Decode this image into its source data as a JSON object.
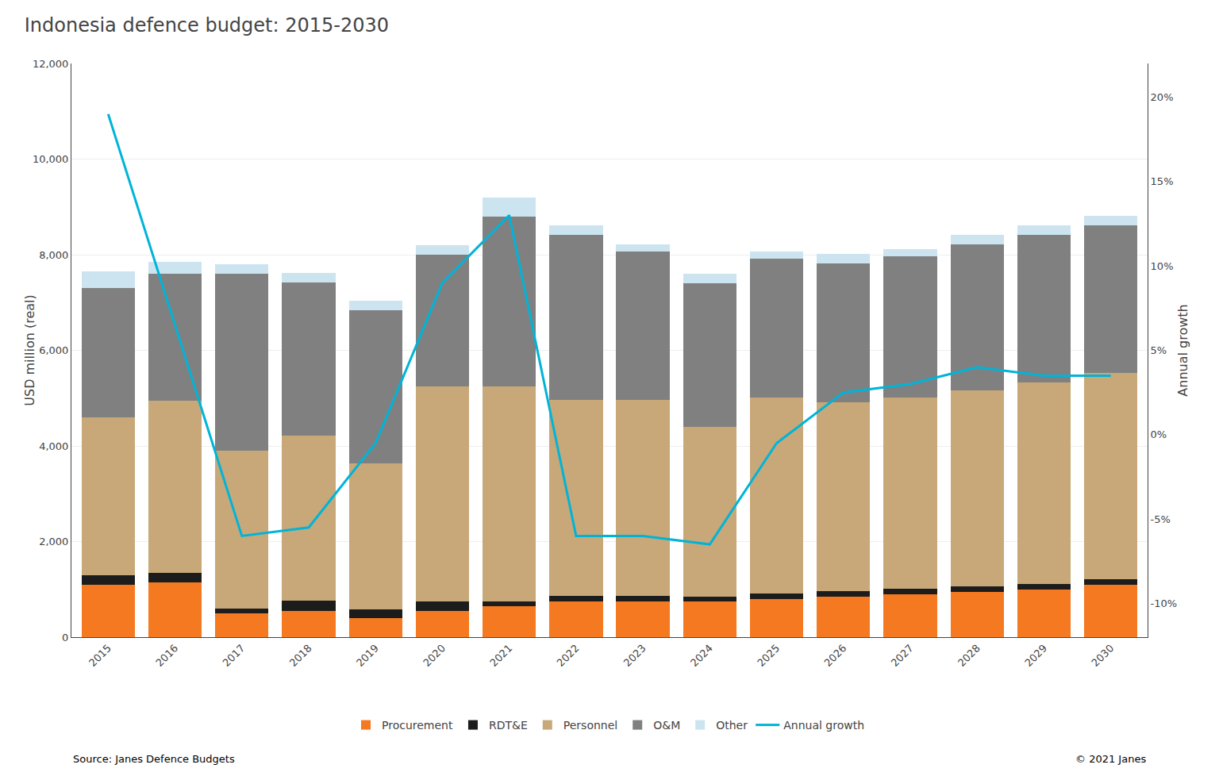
{
  "chart_data": {
    "type": "bar",
    "stacked": true,
    "title": "Indonesia defence budget: 2015-2030",
    "categories": [
      "2015",
      "2016",
      "2017",
      "2018",
      "2019",
      "2020",
      "2021",
      "2022",
      "2023",
      "2024",
      "2025",
      "2026",
      "2027",
      "2028",
      "2029",
      "2030"
    ],
    "series": [
      {
        "name": "Procurement",
        "color": "#f47920",
        "values": [
          1100,
          1150,
          500,
          550,
          400,
          550,
          650,
          750,
          750,
          750,
          800,
          850,
          900,
          950,
          1000,
          1100
        ]
      },
      {
        "name": "RDT&E",
        "color": "#1c1c1c",
        "values": [
          200,
          200,
          100,
          220,
          180,
          200,
          100,
          120,
          120,
          100,
          120,
          120,
          120,
          120,
          120,
          120
        ]
      },
      {
        "name": "Personnel",
        "color": "#c8a878",
        "values": [
          3300,
          3600,
          3300,
          3450,
          3050,
          4500,
          4500,
          4100,
          4100,
          3550,
          4100,
          3950,
          4000,
          4100,
          4200,
          4300
        ]
      },
      {
        "name": "O&M",
        "color": "#808080",
        "values": [
          2700,
          2650,
          3700,
          3200,
          3200,
          2750,
          3550,
          3450,
          3100,
          3000,
          2900,
          2900,
          2950,
          3050,
          3100,
          3100
        ]
      },
      {
        "name": "Other",
        "color": "#cce4f0",
        "values": [
          350,
          250,
          200,
          200,
          200,
          200,
          400,
          200,
          150,
          200,
          150,
          200,
          150,
          200,
          200,
          200
        ]
      },
      {
        "name": "Annual growth",
        "type": "line",
        "axis": "y2",
        "color": "#00b4d8",
        "values": [
          0.19,
          0.065,
          -0.06,
          -0.055,
          -0.005,
          0.09,
          0.13,
          -0.06,
          -0.06,
          -0.065,
          -0.005,
          0.025,
          0.03,
          0.04,
          0.035,
          0.035
        ]
      }
    ],
    "ylabel": "USD million (real)",
    "y2label": "Annual growth",
    "ylim": [
      0,
      12000
    ],
    "yticks": [
      0,
      {
        "value": 2000,
        "label": "2,000"
      },
      {
        "value": 4000,
        "label": "4,000"
      },
      {
        "value": 6000,
        "label": "6,000"
      },
      {
        "value": 8000,
        "label": "8,000"
      },
      {
        "value": 10000,
        "label": "10,000"
      },
      {
        "value": 12000,
        "label": "12,000"
      }
    ],
    "y2lim": [
      -0.12,
      0.22
    ],
    "y2ticks": [
      {
        "value": -0.1,
        "label": "-10%"
      },
      {
        "value": -0.05,
        "label": "-5%"
      },
      {
        "value": 0,
        "label": "0%"
      },
      {
        "value": 0.05,
        "label": "5%"
      },
      {
        "value": 0.1,
        "label": "10%"
      },
      {
        "value": 0.15,
        "label": "15%"
      },
      {
        "value": 0.2,
        "label": "20%"
      }
    ],
    "grid": true,
    "legend": "bottom",
    "annotations": [
      "Source: Janes Defence Budgets",
      "© 2021 Janes"
    ]
  }
}
